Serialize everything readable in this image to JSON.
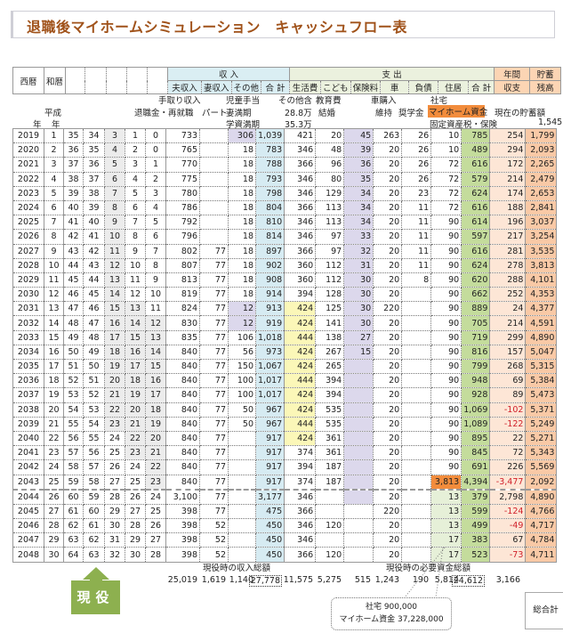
{
  "title": "退職後マイホームシミュレーション　キャッシュフロー表",
  "header": {
    "seireki": "西暦",
    "wareki": "和暦",
    "income": "収 入",
    "income_cols": [
      "夫収入",
      "妻収入",
      "その他",
      "合 計"
    ],
    "expense": "支 出",
    "expense_cols": [
      "生活費",
      "こども",
      "保険料",
      "車",
      "負債",
      "住居",
      "合 計"
    ],
    "balance": [
      "年間",
      "収支"
    ],
    "savings": [
      "貯蓄",
      "残高"
    ]
  },
  "annotations": {
    "tedori": "手取り収入",
    "jido": "児童手当",
    "sonota": "その他含",
    "kyoiku": "教育費",
    "kuruma": "車購入",
    "shataku": "社宅",
    "heisei": "平成",
    "taishoku": "退職金・再就職",
    "part": "パート",
    "tsuma": "妻満期",
    "v288": "28.8万",
    "kekkon": "結婚",
    "iji": "維持",
    "shogaku": "奨学金",
    "myhome": "マイホーム資金",
    "genzai": "現在の貯蓄額",
    "nen1": "年",
    "nen2": "年",
    "gakushi": "学資満期",
    "v353": "35.3万",
    "kotei": "固定資産税・保険",
    "current_savings": "1,545"
  },
  "rows": [
    {
      "cells": [
        "2019",
        "1",
        "35",
        "34",
        "3",
        "1",
        "0",
        "733",
        "",
        "306",
        "1,039",
        "421",
        "20",
        "45",
        "263",
        "26",
        "10",
        "785",
        "254",
        "1,799"
      ]
    },
    {
      "cells": [
        "2020",
        "2",
        "36",
        "35",
        "4",
        "2",
        "0",
        "765",
        "",
        "18",
        "783",
        "346",
        "48",
        "39",
        "20",
        "26",
        "10",
        "489",
        "294",
        "2,093"
      ]
    },
    {
      "cells": [
        "2021",
        "3",
        "37",
        "36",
        "5",
        "3",
        "1",
        "770",
        "",
        "18",
        "788",
        "366",
        "96",
        "36",
        "20",
        "26",
        "72",
        "616",
        "172",
        "2,265"
      ]
    },
    {
      "cells": [
        "2022",
        "4",
        "38",
        "37",
        "6",
        "4",
        "2",
        "775",
        "",
        "18",
        "793",
        "346",
        "80",
        "35",
        "20",
        "26",
        "72",
        "579",
        "214",
        "2,479"
      ]
    },
    {
      "cells": [
        "2023",
        "5",
        "39",
        "38",
        "7",
        "5",
        "3",
        "780",
        "",
        "18",
        "798",
        "346",
        "129",
        "34",
        "20",
        "23",
        "72",
        "624",
        "174",
        "2,653"
      ]
    },
    {
      "cells": [
        "2024",
        "6",
        "40",
        "39",
        "8",
        "6",
        "4",
        "786",
        "",
        "18",
        "804",
        "366",
        "113",
        "34",
        "20",
        "11",
        "72",
        "616",
        "188",
        "2,841"
      ]
    },
    {
      "cells": [
        "2025",
        "7",
        "41",
        "40",
        "9",
        "7",
        "5",
        "792",
        "",
        "18",
        "810",
        "346",
        "113",
        "34",
        "20",
        "11",
        "90",
        "614",
        "196",
        "3,037"
      ]
    },
    {
      "cells": [
        "2026",
        "8",
        "42",
        "41",
        "10",
        "8",
        "6",
        "796",
        "",
        "18",
        "814",
        "346",
        "97",
        "33",
        "20",
        "11",
        "90",
        "597",
        "217",
        "3,254"
      ]
    },
    {
      "cells": [
        "2027",
        "9",
        "43",
        "42",
        "11",
        "9",
        "7",
        "802",
        "77",
        "18",
        "897",
        "366",
        "97",
        "32",
        "20",
        "11",
        "90",
        "616",
        "281",
        "3,535"
      ]
    },
    {
      "cells": [
        "2028",
        "10",
        "44",
        "43",
        "12",
        "10",
        "8",
        "807",
        "77",
        "18",
        "902",
        "360",
        "112",
        "31",
        "20",
        "11",
        "90",
        "624",
        "278",
        "3,813"
      ]
    },
    {
      "cells": [
        "2029",
        "11",
        "45",
        "44",
        "13",
        "11",
        "9",
        "813",
        "77",
        "18",
        "908",
        "360",
        "112",
        "30",
        "20",
        "8",
        "90",
        "620",
        "288",
        "4,101"
      ]
    },
    {
      "cells": [
        "2030",
        "12",
        "46",
        "45",
        "14",
        "12",
        "10",
        "819",
        "77",
        "18",
        "914",
        "394",
        "128",
        "30",
        "20",
        "",
        "90",
        "662",
        "252",
        "4,353"
      ]
    },
    {
      "cells": [
        "2031",
        "13",
        "47",
        "46",
        "15",
        "13",
        "11",
        "824",
        "77",
        "12",
        "913",
        "424",
        "125",
        "30",
        "220",
        "",
        "90",
        "889",
        "24",
        "4,377"
      ]
    },
    {
      "cells": [
        "2032",
        "14",
        "48",
        "47",
        "16",
        "14",
        "12",
        "830",
        "77",
        "12",
        "919",
        "424",
        "141",
        "30",
        "20",
        "",
        "90",
        "705",
        "214",
        "4,591"
      ]
    },
    {
      "cells": [
        "2033",
        "15",
        "49",
        "48",
        "17",
        "15",
        "13",
        "835",
        "77",
        "106",
        "1,018",
        "444",
        "138",
        "27",
        "20",
        "",
        "90",
        "719",
        "299",
        "4,890"
      ]
    },
    {
      "cells": [
        "2034",
        "16",
        "50",
        "49",
        "18",
        "16",
        "14",
        "840",
        "77",
        "56",
        "973",
        "424",
        "267",
        "15",
        "20",
        "",
        "90",
        "816",
        "157",
        "5,047"
      ]
    },
    {
      "cells": [
        "2035",
        "17",
        "51",
        "50",
        "19",
        "17",
        "15",
        "840",
        "77",
        "150",
        "1,067",
        "424",
        "265",
        "",
        "20",
        "",
        "90",
        "799",
        "268",
        "5,315"
      ]
    },
    {
      "cells": [
        "2036",
        "18",
        "52",
        "51",
        "20",
        "18",
        "16",
        "840",
        "77",
        "100",
        "1,017",
        "444",
        "394",
        "",
        "20",
        "",
        "90",
        "948",
        "69",
        "5,384"
      ]
    },
    {
      "cells": [
        "2037",
        "19",
        "53",
        "52",
        "21",
        "19",
        "17",
        "840",
        "77",
        "100",
        "1,017",
        "424",
        "394",
        "",
        "20",
        "",
        "90",
        "928",
        "89",
        "5,473"
      ]
    },
    {
      "cells": [
        "2038",
        "20",
        "54",
        "53",
        "22",
        "20",
        "18",
        "840",
        "77",
        "50",
        "967",
        "424",
        "535",
        "",
        "20",
        "",
        "90",
        "1,069",
        "-102",
        "5,371"
      ]
    },
    {
      "cells": [
        "2039",
        "21",
        "55",
        "54",
        "23",
        "21",
        "19",
        "840",
        "77",
        "50",
        "967",
        "444",
        "535",
        "",
        "20",
        "",
        "90",
        "1,089",
        "-122",
        "5,249"
      ]
    },
    {
      "cells": [
        "2040",
        "22",
        "56",
        "55",
        "24",
        "22",
        "20",
        "840",
        "77",
        "",
        "917",
        "424",
        "361",
        "",
        "20",
        "",
        "90",
        "895",
        "22",
        "5,271"
      ]
    },
    {
      "cells": [
        "2041",
        "23",
        "57",
        "56",
        "25",
        "23",
        "21",
        "840",
        "77",
        "",
        "917",
        "374",
        "361",
        "",
        "20",
        "",
        "90",
        "845",
        "72",
        "5,343"
      ]
    },
    {
      "cells": [
        "2042",
        "24",
        "58",
        "57",
        "26",
        "24",
        "22",
        "840",
        "77",
        "",
        "917",
        "394",
        "187",
        "",
        "20",
        "",
        "90",
        "691",
        "226",
        "5,569"
      ]
    },
    {
      "cells": [
        "2043",
        "25",
        "59",
        "58",
        "27",
        "25",
        "23",
        "840",
        "77",
        "",
        "917",
        "374",
        "187",
        "",
        "20",
        "",
        "3,813",
        "4,394",
        "-3,477",
        "2,092"
      ]
    },
    {
      "cells": [
        "2044",
        "26",
        "60",
        "59",
        "28",
        "26",
        "24",
        "3,100",
        "77",
        "",
        "3,177",
        "346",
        "",
        "",
        "20",
        "",
        "13",
        "379",
        "2,798",
        "4,890"
      ]
    },
    {
      "cells": [
        "2045",
        "27",
        "61",
        "60",
        "29",
        "27",
        "25",
        "398",
        "77",
        "",
        "475",
        "366",
        "",
        "",
        "220",
        "",
        "13",
        "599",
        "-124",
        "4,766"
      ]
    },
    {
      "cells": [
        "2046",
        "28",
        "62",
        "61",
        "30",
        "28",
        "26",
        "398",
        "52",
        "",
        "450",
        "346",
        "120",
        "",
        "20",
        "",
        "13",
        "499",
        "-49",
        "4,717"
      ]
    },
    {
      "cells": [
        "2047",
        "29",
        "63",
        "62",
        "31",
        "29",
        "27",
        "398",
        "52",
        "",
        "450",
        "346",
        "",
        "",
        "20",
        "",
        "17",
        "383",
        "67",
        "4,784"
      ]
    },
    {
      "cells": [
        "2048",
        "30",
        "64",
        "63",
        "32",
        "30",
        "28",
        "398",
        "52",
        "",
        "450",
        "366",
        "120",
        "",
        "20",
        "",
        "17",
        "523",
        "-73",
        "4,711"
      ]
    }
  ],
  "footer": {
    "income_total_label": "現役時の収入総額",
    "expense_total_label": "現役時の必要資金総額",
    "totals": [
      "25,019",
      "1,619",
      "1,140",
      "27,778",
      "11,575",
      "5,275",
      "515",
      "1,243",
      "190",
      "5,814",
      "24,612",
      "3,166"
    ],
    "genyaku": "現役",
    "callout": [
      "社宅 900,000",
      "マイホーム資金 37,228,000"
    ],
    "grand_total": "総合計"
  },
  "colors": {
    "title": "#a0521a",
    "income_header": "#daeef3",
    "expense_header": "#ebf1de",
    "balance_header": "#fcd5b4",
    "genyaku": "#8db04f",
    "house_cost": "#f28c3c"
  }
}
